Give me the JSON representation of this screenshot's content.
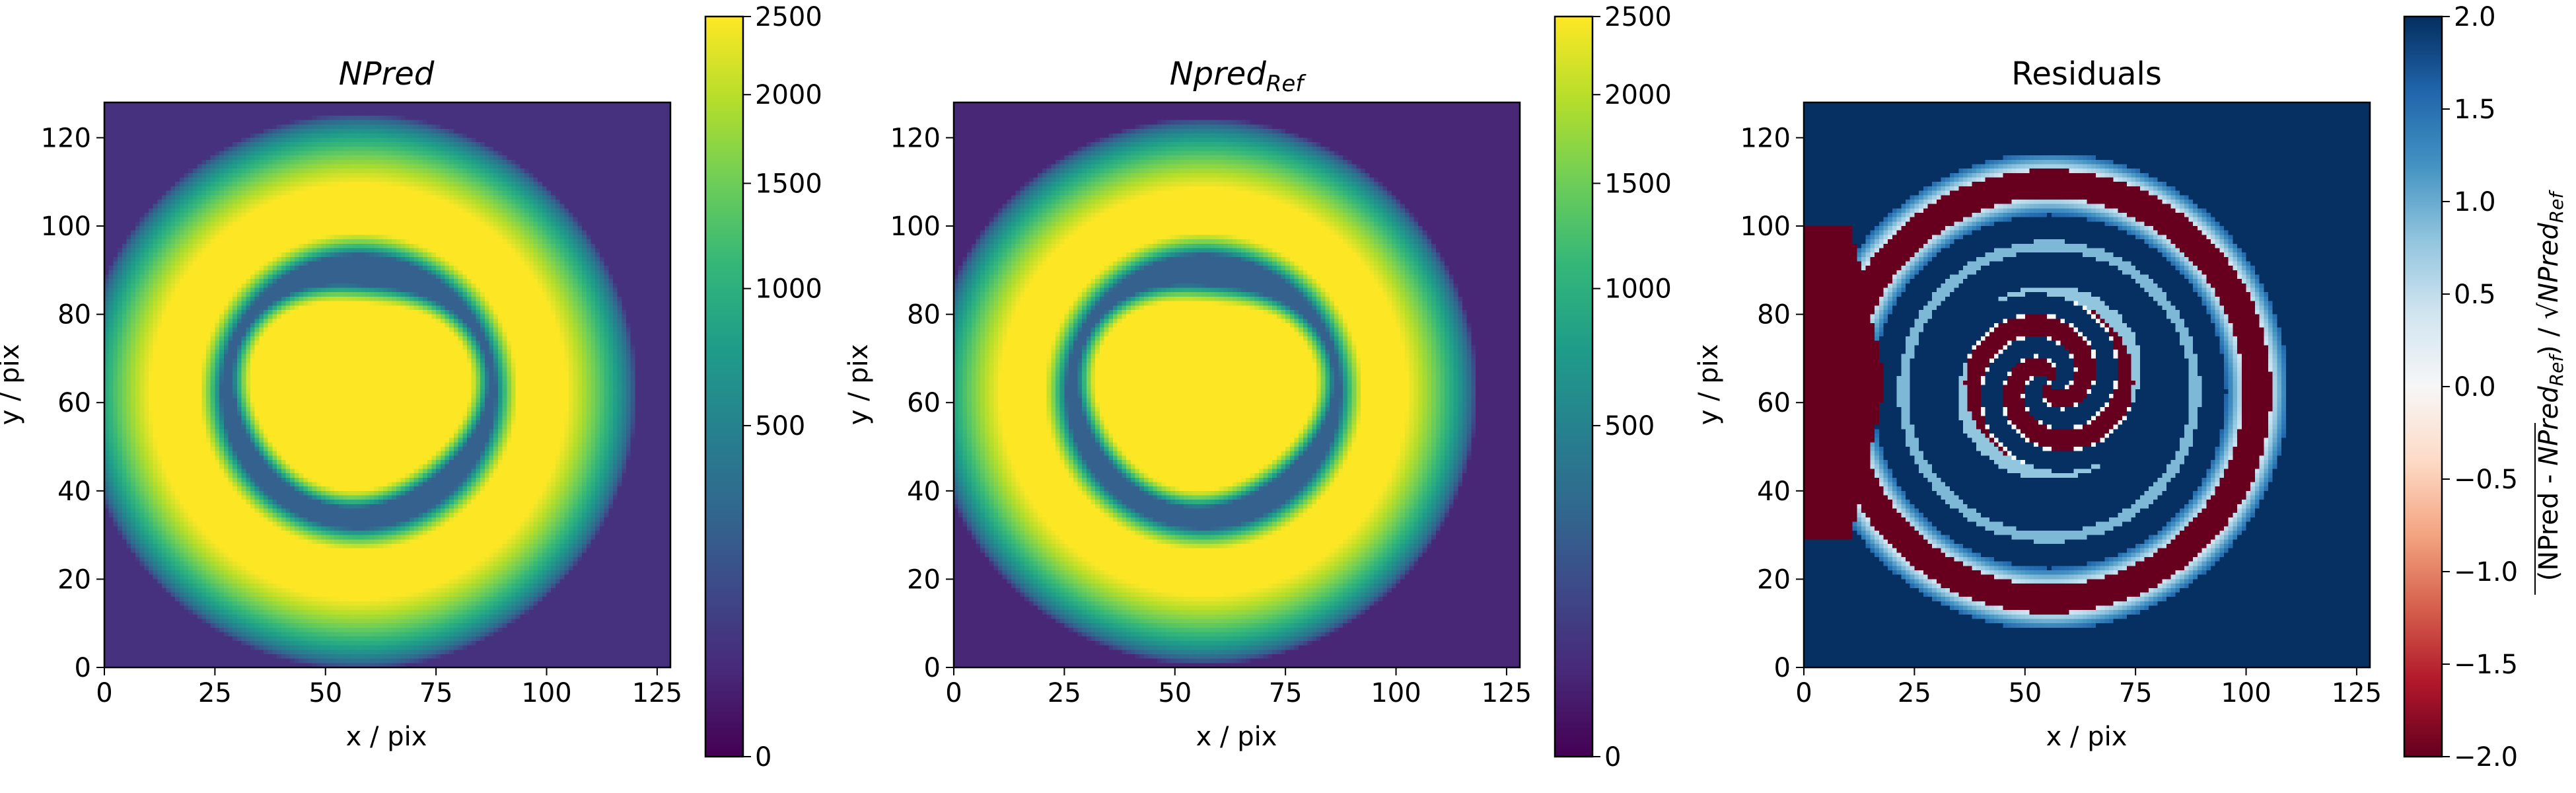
{
  "chart_data": [
    {
      "type": "heatmap",
      "title": "NPred",
      "xlabel": "x / pix",
      "ylabel": "y / pix",
      "xlim": [
        0,
        128
      ],
      "ylim": [
        0,
        128
      ],
      "xticks": [
        0,
        25,
        50,
        75,
        100,
        125
      ],
      "yticks": [
        0,
        20,
        40,
        60,
        80,
        100,
        120
      ],
      "colormap": "viridis",
      "colorbar": {
        "range": [
          0,
          2500
        ],
        "scale": "sqrt",
        "ticks": [
          0,
          500,
          1000,
          1500,
          2000,
          2500
        ]
      },
      "pattern": {
        "outer_ring_center": [
          57,
          62
        ],
        "outer_ring_radius": 51,
        "inner_ring_radius": 28,
        "center_disk_radius": 23,
        "dark_ring_value": 240,
        "edge_value": 50,
        "max_value": 2500
      }
    },
    {
      "type": "heatmap",
      "title": "Npred",
      "title_subscript": "Ref",
      "xlabel": "x / pix",
      "ylabel": "y / pix",
      "xlim": [
        0,
        128
      ],
      "ylim": [
        0,
        128
      ],
      "xticks": [
        0,
        25,
        50,
        75,
        100,
        125
      ],
      "yticks": [
        0,
        20,
        40,
        60,
        80,
        100,
        120
      ],
      "colormap": "viridis",
      "colorbar": {
        "range": [
          0,
          2500
        ],
        "scale": "sqrt",
        "ticks": [
          0,
          500,
          1000,
          1500,
          2000,
          2500
        ]
      },
      "pattern": {
        "outer_ring_center": [
          56,
          62
        ],
        "outer_ring_radius": 50,
        "inner_ring_radius": 28,
        "center_disk_radius": 23,
        "dark_ring_value": 240,
        "edge_value": 30,
        "max_value": 2500
      }
    },
    {
      "type": "heatmap",
      "title": "Residuals",
      "xlabel": "x / pix",
      "ylabel": "y / pix",
      "xlim": [
        0,
        128
      ],
      "ylim": [
        0,
        128
      ],
      "xticks": [
        0,
        25,
        50,
        75,
        100,
        125
      ],
      "yticks": [
        0,
        20,
        40,
        60,
        80,
        100,
        120
      ],
      "colormap": "RdBu",
      "colorbar": {
        "range": [
          -2.0,
          2.0
        ],
        "scale": "linear",
        "ticks": [
          -2.0,
          -1.5,
          -1.0,
          -0.5,
          0.0,
          0.5,
          1.0,
          1.5,
          2.0
        ],
        "label_parts": [
          "(NPred - ",
          "NPred",
          "Ref",
          ") / √",
          "NPred",
          "Ref"
        ]
      },
      "pattern": {
        "background_value": 2.0,
        "outer_ring_center": [
          55,
          62
        ],
        "outer_ring_radius": 50,
        "spiral_center": [
          55,
          64
        ],
        "spiral_max_radius": 22,
        "left_wedge_value": -2.0
      }
    }
  ],
  "colors": {
    "viridis": [
      "#440154",
      "#482878",
      "#3e4989",
      "#31688e",
      "#26828e",
      "#1f9e89",
      "#35b779",
      "#6ece58",
      "#b5de2b",
      "#fde725"
    ],
    "rdbu": [
      "#67001f",
      "#b2182b",
      "#d6604d",
      "#f4a582",
      "#fddbc7",
      "#f7f7f7",
      "#d1e5f0",
      "#92c5de",
      "#4393c3",
      "#2166ac",
      "#053061"
    ]
  }
}
